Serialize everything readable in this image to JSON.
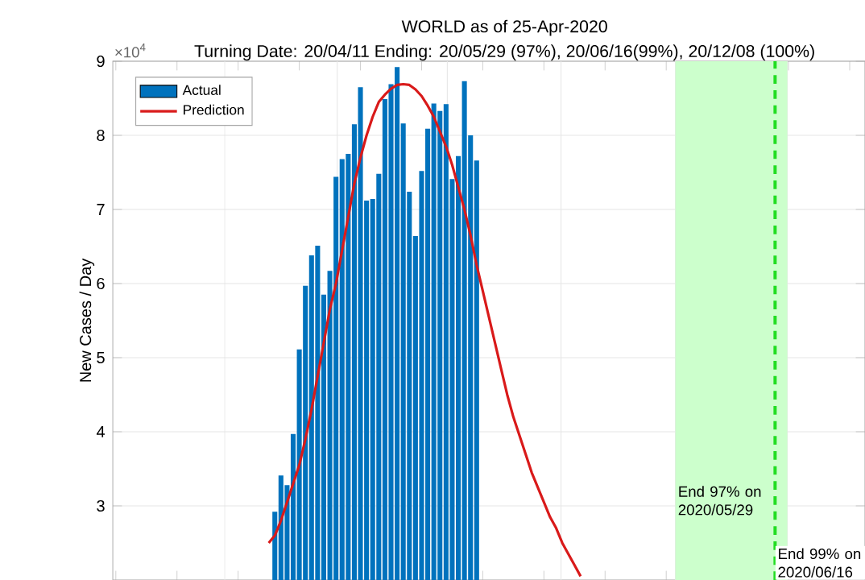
{
  "chart_data": {
    "type": "bar",
    "title": "WORLD as of 25-Apr-2020",
    "subtitle": "Turning Date: 20/04/11  Ending: 20/05/29 (97%), 20/06/16(99%), 20/12/08 (100%)",
    "ylabel": "New Cases / Day",
    "annotations": [
      "×10$^{4}$",
      "End 97% on 2020/05/29",
      "End 99% on 2020/06/16"
    ],
    "categories": [
      null,
      null,
      null,
      null,
      null,
      null,
      null,
      null,
      null,
      null,
      null,
      null,
      null,
      null,
      null,
      null,
      null,
      null,
      null,
      null,
      null,
      null,
      null,
      null,
      null,
      null,
      null,
      null,
      null,
      null,
      null,
      null,
      null,
      null,
      null,
      null,
      null,
      null,
      null,
      null,
      null,
      null,
      null,
      null,
      null,
      null,
      null,
      null,
      null,
      null,
      null,
      null,
      null,
      null,
      null,
      null,
      null,
      null,
      null,
      null,
      null,
      null,
      null,
      null,
      null,
      null,
      null,
      null,
      null,
      null,
      null,
      null,
      null,
      null,
      null,
      null,
      null,
      null,
      null,
      null,
      null,
      null,
      null,
      null,
      null,
      null,
      null,
      null,
      null,
      null,
      null,
      null,
      null,
      null,
      null,
      null,
      null,
      null,
      null,
      null,
      null,
      null,
      null,
      null,
      null,
      null,
      null,
      null,
      null,
      null,
      null,
      null,
      null,
      null,
      null,
      null,
      null,
      null,
      null,
      null,
      null,
      null,
      null
    ],
    "series": [
      {
        "name": "Actual",
        "color": "#0072bd",
        "values": [
          null,
          null,
          null,
          null,
          null,
          null,
          null,
          null,
          null,
          null,
          null,
          null,
          null,
          null,
          null,
          null,
          null,
          null,
          null,
          null,
          null,
          null,
          null,
          null,
          null,
          null,
          2.92,
          3.41,
          3.28,
          3.97,
          5.11,
          5.97,
          6.38,
          6.51,
          5.85,
          6.17,
          7.44,
          7.68,
          7.75,
          8.15,
          8.65,
          7.12,
          7.14,
          7.48,
          8.49,
          8.69,
          8.92,
          8.16,
          7.24,
          6.64,
          7.52,
          8.09,
          8.43,
          8.33,
          8.42,
          7.41,
          7.72,
          8.73,
          8.0,
          7.66,
          null,
          null,
          null,
          null,
          null,
          null,
          null,
          null,
          null,
          null,
          null,
          null,
          null,
          null,
          null,
          null,
          null,
          null,
          null,
          null,
          null,
          null,
          null,
          null,
          null,
          null,
          null,
          null,
          null,
          null,
          null,
          null,
          null,
          null,
          null,
          null,
          null,
          null,
          null,
          null,
          null,
          null,
          null,
          null,
          null,
          null,
          null,
          null,
          null,
          null,
          null,
          null,
          null,
          null,
          null,
          null,
          null,
          null,
          null,
          null,
          null,
          null,
          null
        ]
      },
      {
        "name": "Prediction",
        "type": "line",
        "color": "#d91a1a",
        "values": [
          null,
          null,
          null,
          null,
          null,
          null,
          null,
          null,
          null,
          null,
          null,
          null,
          null,
          null,
          null,
          null,
          null,
          null,
          null,
          null,
          null,
          null,
          null,
          null,
          null,
          2.5,
          2.6,
          2.8,
          3.05,
          3.3,
          3.55,
          3.9,
          4.3,
          4.75,
          5.2,
          5.65,
          6.0,
          6.45,
          6.9,
          7.35,
          7.7,
          8.0,
          8.25,
          8.45,
          8.55,
          8.63,
          8.68,
          8.69,
          8.68,
          8.62,
          8.53,
          8.4,
          8.25,
          8.05,
          7.85,
          7.6,
          7.3,
          7.0,
          6.65,
          6.25,
          5.9,
          5.55,
          5.2,
          4.85,
          4.5,
          4.2,
          3.95,
          3.7,
          3.45,
          3.25,
          3.05,
          2.85,
          2.7,
          2.5,
          2.35,
          2.2,
          2.05,
          null,
          null,
          null,
          null,
          null,
          null,
          null,
          null,
          null,
          null,
          null,
          null,
          null,
          null,
          null,
          null,
          null,
          null,
          null,
          null,
          null,
          null,
          null,
          null,
          null,
          null,
          null,
          null,
          null,
          null,
          null,
          null,
          null,
          null,
          null,
          null,
          null,
          null,
          null,
          null,
          null,
          null,
          null,
          null,
          null,
          null
        ]
      }
    ],
    "ylim": [
      2,
      9
    ],
    "yticks": [
      3,
      4,
      5,
      6,
      7,
      8,
      9
    ],
    "grid": true,
    "legend": "top left"
  }
}
